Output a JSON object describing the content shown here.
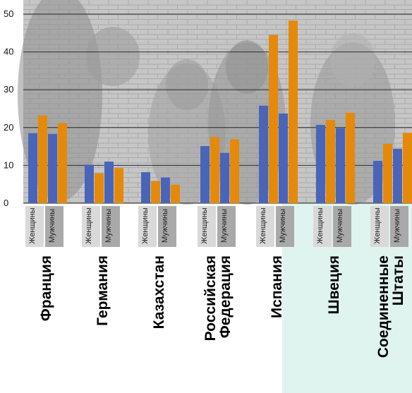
{
  "colors": {
    "women": "#4a64b8",
    "men": "#e5890a",
    "panel": "#e0f4ef",
    "photo_tint": "#b9b9b9",
    "gridline": "#2b2b2b",
    "sex_label_bg_women": "#d9d9d9",
    "sex_label_bg_men": "#a9a9a9"
  },
  "chart_data": {
    "type": "bar",
    "ylim": [
      0,
      50
    ],
    "y_ticks": [
      "0",
      "10",
      "20",
      "30",
      "40",
      "50"
    ],
    "grid": true,
    "background": "photograph of a group of young people",
    "sex_labels": [
      "Женщины",
      "Мужчины"
    ],
    "categories": [
      {
        "country": [
          "Франция"
        ],
        "women": [
          18.5,
          18.3
        ],
        "men": [
          23.2,
          21.2
        ]
      },
      {
        "country": [
          "Германия"
        ],
        "women": [
          10.2,
          11.0
        ],
        "men": [
          7.9,
          9.3
        ]
      },
      {
        "country": [
          "Казахстан"
        ],
        "women": [
          8.2,
          6.8
        ],
        "men": [
          5.9,
          4.9
        ]
      },
      {
        "country": [
          "Российская",
          "Федерация"
        ],
        "women": [
          15.1,
          13.3
        ],
        "men": [
          17.5,
          16.9
        ]
      },
      {
        "country": [
          "Испания"
        ],
        "women": [
          25.8,
          23.7
        ],
        "men": [
          44.5,
          48.3
        ]
      },
      {
        "country": [
          "Швеция"
        ],
        "women": [
          20.7,
          19.8
        ],
        "men": [
          22.0,
          23.9
        ]
      },
      {
        "country": [
          "Соединенные",
          "Штаты"
        ],
        "women": [
          11.2,
          14.4
        ],
        "men": [
          15.7,
          18.6
        ]
      }
    ]
  }
}
